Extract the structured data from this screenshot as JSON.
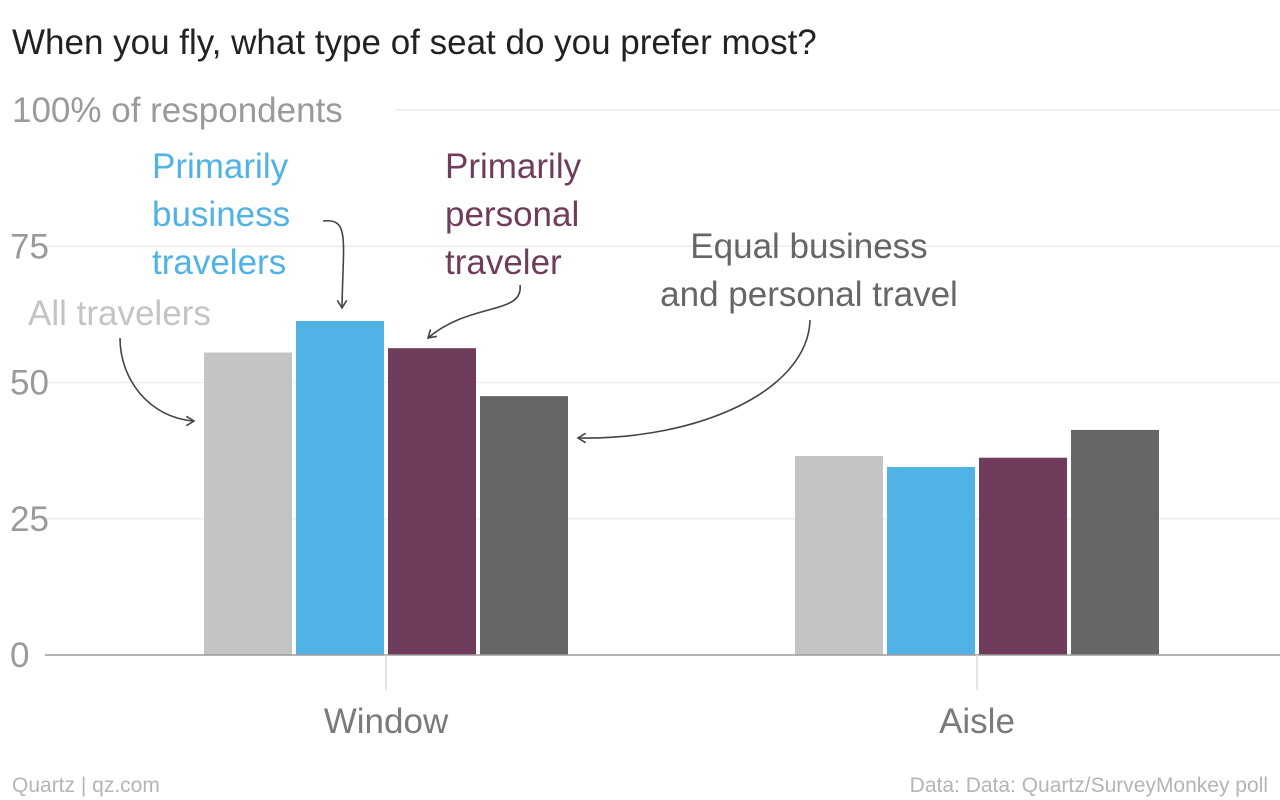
{
  "chart_data": {
    "type": "bar",
    "title": "When you fly, what type of seat do you prefer most?",
    "ylabel": "100% of respondents",
    "ylim": [
      0,
      100
    ],
    "yticks": [
      0,
      25,
      50,
      75
    ],
    "ytick_labels": [
      "0",
      "25",
      "50",
      "75"
    ],
    "grid": true,
    "categories": [
      "Window",
      "Aisle"
    ],
    "series": [
      {
        "name": "All travelers",
        "label_lines": [
          "All travelers"
        ],
        "color": "#c4c4c4",
        "values": [
          55.5,
          36.5
        ]
      },
      {
        "name": "Primarily business travelers",
        "label_lines": [
          "Primarily",
          "business",
          "travelers"
        ],
        "color": "#51b2e5",
        "values": [
          61.3,
          34.5
        ]
      },
      {
        "name": "Primarily personal traveler",
        "label_lines": [
          "Primarily",
          "personal",
          "traveler"
        ],
        "color": "#703c5c",
        "values": [
          56.3,
          36.2
        ]
      },
      {
        "name": "Equal business and personal travel",
        "label_lines": [
          "Equal business",
          "and personal travel"
        ],
        "color": "#666666",
        "values": [
          47.5,
          41.3
        ]
      }
    ]
  },
  "footer": {
    "left": "Quartz | qz.com",
    "right": "Data: Data: Quartz/SurveyMonkey poll"
  }
}
